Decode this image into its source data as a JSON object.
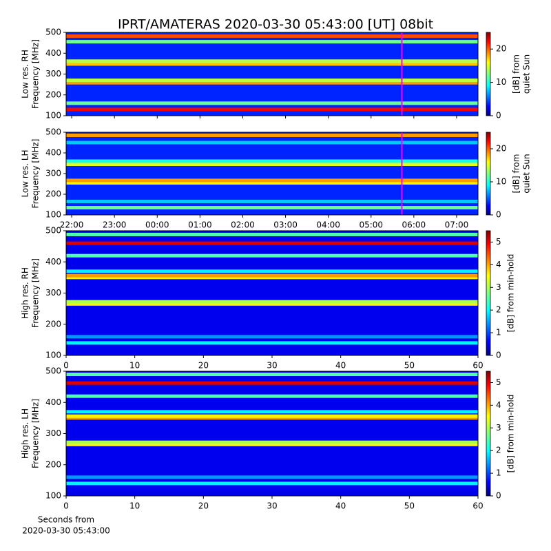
{
  "title": "IPRT/AMATERAS 2020-03-30 05:43:00 [UT]   08bit",
  "chart_data": [
    {
      "type": "heatmap",
      "ylabel": [
        "Low res. RH",
        "Frequency [MHz]"
      ],
      "ylim": [
        100,
        500
      ],
      "yticks": [
        100,
        200,
        300,
        400,
        500
      ],
      "xlim": [
        21.87,
        31.5
      ],
      "xticks": [
        22,
        23,
        24,
        25,
        26,
        27,
        28,
        29,
        30,
        31
      ],
      "xtick_labels": false,
      "marker_x": 29.72,
      "marker_color": "#ff00ff",
      "z_background": 4,
      "y": [
        130,
        160,
        258,
        270,
        348,
        362,
        455,
        482
      ],
      "z": [
        22,
        12,
        18,
        14,
        17,
        14,
        12,
        20
      ],
      "colorbar": {
        "label": [
          "[dB] from",
          "quiet Sun"
        ],
        "lim": [
          0,
          25
        ],
        "ticks": [
          0,
          10,
          20
        ]
      }
    },
    {
      "type": "heatmap",
      "ylabel": [
        "Low res. LH",
        "Frequency [MHz]"
      ],
      "ylim": [
        100,
        500
      ],
      "yticks": [
        100,
        200,
        300,
        400,
        500
      ],
      "xlim": [
        21.87,
        31.5
      ],
      "xticks": [
        {
          "value": 22,
          "label": "22:00"
        },
        {
          "value": 23,
          "label": "23:00"
        },
        {
          "value": 24,
          "label": "00:00"
        },
        {
          "value": 25,
          "label": "01:00"
        },
        {
          "value": 26,
          "label": "02:00"
        },
        {
          "value": 27,
          "label": "03:00"
        },
        {
          "value": 28,
          "label": "04:00"
        },
        {
          "value": 29,
          "label": "05:00"
        },
        {
          "value": 30,
          "label": "06:00"
        },
        {
          "value": 31,
          "label": "07:00"
        }
      ],
      "xtick_labels": true,
      "marker_x": 29.72,
      "marker_color": "#ff00ff",
      "z_background": 4,
      "y": [
        135,
        165,
        255,
        267,
        345,
        360,
        450,
        485
      ],
      "z": [
        12,
        8,
        16,
        18,
        15,
        10,
        8,
        18
      ],
      "colorbar": {
        "label": [
          "[dB] from",
          "quiet Sun"
        ],
        "lim": [
          0,
          25
        ],
        "ticks": [
          0,
          10,
          20
        ]
      }
    },
    {
      "type": "heatmap",
      "ylabel": [
        "High res. RH",
        "Frequency [MHz]"
      ],
      "ylim": [
        100,
        500
      ],
      "yticks": [
        100,
        200,
        300,
        400,
        500
      ],
      "xlim": [
        0,
        60
      ],
      "xticks": [
        0,
        10,
        20,
        30,
        40,
        50,
        60
      ],
      "xtick_labels": true,
      "z_background": 0.6,
      "y": [
        140,
        160,
        265,
        272,
        350,
        356,
        370,
        420,
        460,
        488
      ],
      "z": [
        2,
        1.5,
        3.5,
        3,
        3.5,
        4,
        2,
        2.5,
        5,
        2.5
      ],
      "colorbar": {
        "label": [
          "[dB] from min-hold"
        ],
        "lim": [
          0,
          5.5
        ],
        "ticks": [
          0,
          1,
          2,
          3,
          4,
          5
        ]
      }
    },
    {
      "type": "heatmap",
      "ylabel": [
        "High res. LH",
        "Frequency [MHz]"
      ],
      "ylim": [
        100,
        500
      ],
      "yticks": [
        100,
        200,
        300,
        400,
        500
      ],
      "xlim": [
        0,
        60
      ],
      "xticks": [
        0,
        10,
        20,
        30,
        40,
        50,
        60
      ],
      "xtick_labels": true,
      "xlabel": [
        "Seconds from",
        "2020-03-30 05:43:00"
      ],
      "z_background": 0.6,
      "y": [
        140,
        160,
        265,
        272,
        350,
        356,
        370,
        420,
        462,
        490
      ],
      "z": [
        2,
        1.5,
        3.5,
        3,
        4,
        3.5,
        2,
        2.5,
        5,
        2.5
      ],
      "colorbar": {
        "label": [
          "[dB] from min-hold"
        ],
        "lim": [
          0,
          5.5
        ],
        "ticks": [
          0,
          1,
          2,
          3,
          4,
          5
        ]
      }
    }
  ]
}
